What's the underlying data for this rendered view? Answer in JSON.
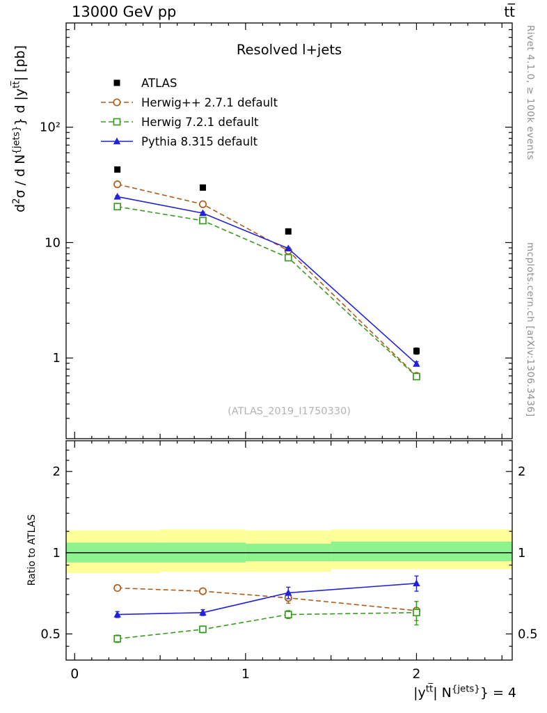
{
  "header": {
    "left": "13000 GeV pp",
    "right": "tt̅"
  },
  "margin_notes": {
    "top_right_vertical": "Rivet 4.1.0, ≥ 100k events",
    "bottom_right_vertical": "mcplots.cern.ch [arXiv:1306.3436]"
  },
  "plot": {
    "title": "Resolved l+jets",
    "watermark": "(ATLAS_2019_I1750330)",
    "ratio_ylabel": "Ratio to ATLAS",
    "ylabel_segments": [
      {
        "t": "d"
      },
      {
        "t": "2",
        "sup": true
      },
      {
        "t": "σ / d N"
      },
      {
        "t": "{jets}",
        "sup": true
      },
      {
        "t": "} d |y"
      },
      {
        "t": "tt̅",
        "sup": true
      },
      {
        "t": "| [pb]"
      }
    ],
    "xlabel_segments": [
      {
        "t": "|y"
      },
      {
        "t": "tt̅",
        "sup": true
      },
      {
        "t": "| N"
      },
      {
        "t": "{jets}",
        "sup": true
      },
      {
        "t": "} = 4"
      }
    ]
  },
  "chart_data": {
    "type": "line",
    "title": "Resolved l+jets",
    "x": [
      0.25,
      0.75,
      1.25,
      2.0
    ],
    "bin_edges": [
      0,
      0.5,
      1.0,
      1.5,
      2.5
    ],
    "xlim": [
      -0.05,
      2.56
    ],
    "xticks": [
      {
        "v": 0,
        "label": "0"
      },
      {
        "v": 1,
        "label": "1"
      },
      {
        "v": 2,
        "label": "2"
      }
    ],
    "top_panel": {
      "ylabel": "d^2σ / dN^{jets} d|y^{tt}| [pb]",
      "yscale": "log",
      "ylim": [
        0.2,
        800
      ],
      "yticks": [
        {
          "v": 1,
          "label": "1"
        },
        {
          "v": 10,
          "label": "10"
        },
        {
          "v": 100,
          "label": "10²"
        }
      ],
      "series": [
        {
          "name": "ATLAS",
          "marker": "square-filled",
          "color": "#000000",
          "line": "none",
          "values": [
            43,
            30,
            12.5,
            1.15
          ],
          "yerr": [
            2,
            1.5,
            0.6,
            0.07
          ]
        },
        {
          "name": "Herwig++ 2.7.1 default",
          "marker": "circle-open",
          "color": "#b05c18",
          "line": "dashed",
          "values": [
            32,
            21.5,
            8.5,
            0.7
          ],
          "yerr": [
            0.5,
            0.4,
            0.2,
            0.03
          ]
        },
        {
          "name": "Herwig 7.2.1 default",
          "marker": "square-open",
          "color": "#3a9b20",
          "line": "dashed",
          "values": [
            20.5,
            15.5,
            7.4,
            0.69
          ],
          "yerr": [
            0.4,
            0.3,
            0.18,
            0.03
          ]
        },
        {
          "name": "Pythia 8.315 default",
          "marker": "triangle-filled",
          "color": "#2222dd",
          "line": "solid",
          "values": [
            25,
            18,
            8.9,
            0.89
          ],
          "yerr": [
            0.5,
            0.4,
            0.2,
            0.04
          ]
        }
      ]
    },
    "ratio_panel": {
      "ylabel": "Ratio to ATLAS",
      "yscale": "log",
      "ylim": [
        0.4,
        2.6
      ],
      "yticks": [
        {
          "v": 0.5,
          "label": "0.5"
        },
        {
          "v": 1,
          "label": "1"
        },
        {
          "v": 2,
          "label": "2"
        }
      ],
      "yminor": [
        0.45,
        0.6,
        0.7,
        0.8,
        0.9,
        1.2,
        1.4,
        1.6,
        1.8,
        2.2,
        2.4
      ],
      "unity_line": 1.0,
      "bands": {
        "yellow": {
          "color": "#ffff9a",
          "ranges": [
            [
              0.84,
              1.21
            ],
            [
              0.85,
              1.22
            ],
            [
              0.85,
              1.21
            ],
            [
              0.87,
              1.22
            ]
          ]
        },
        "green": {
          "color": "#8ef28e",
          "ranges": [
            [
              0.92,
              1.09
            ],
            [
              0.92,
              1.09
            ],
            [
              0.93,
              1.08
            ],
            [
              0.93,
              1.1
            ]
          ]
        }
      },
      "series": [
        {
          "name": "Herwig++ 2.7.1 default",
          "values": [
            0.74,
            0.72,
            0.68,
            0.61
          ],
          "yerr": [
            0.015,
            0.015,
            0.03,
            0.05
          ]
        },
        {
          "name": "Herwig 7.2.1 default",
          "values": [
            0.48,
            0.52,
            0.59,
            0.6
          ],
          "yerr": [
            0.015,
            0.015,
            0.02,
            0.06
          ]
        },
        {
          "name": "Pythia 8.315 default",
          "values": [
            0.59,
            0.6,
            0.71,
            0.77
          ],
          "yerr": [
            0.015,
            0.015,
            0.035,
            0.05
          ]
        }
      ]
    },
    "legend": {
      "position": "top-left",
      "entries": [
        "ATLAS",
        "Herwig++ 2.7.1 default",
        "Herwig 7.2.1 default",
        "Pythia 8.315 default"
      ]
    }
  }
}
